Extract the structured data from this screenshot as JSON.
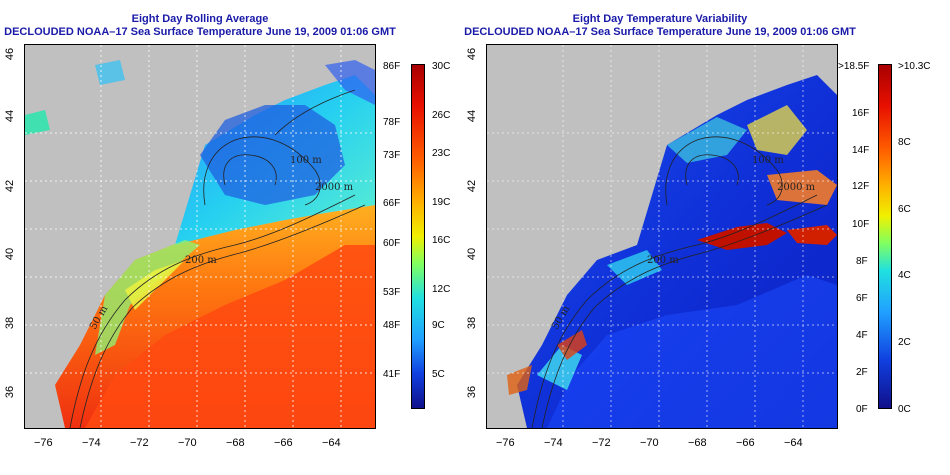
{
  "left": {
    "title_line1": "Eight Day Rolling Average",
    "title_line2": "DECLOUDED NOAA–17 Sea Surface Temperature June 19, 2009 01:06 GMT",
    "colorbar_f": [
      "86F",
      "78F",
      "73F",
      "66F",
      "60F",
      "53F",
      "48F",
      "41F"
    ],
    "colorbar_c": [
      "30C",
      "26C",
      "23C",
      "19C",
      "16C",
      "12C",
      "9C",
      "5C"
    ]
  },
  "right": {
    "title_line1": "Eight Day Temperature Variability",
    "title_line2": "DECLOUDED NOAA–17 Sea Surface Temperature June 19, 2009 01:06 GMT",
    "colorbar_f": [
      ">18.5F",
      "16F",
      "14F",
      "12F",
      "10F",
      "8F",
      "6F",
      "4F",
      "2F",
      "0F"
    ],
    "colorbar_c": [
      ">10.3C",
      "8C",
      "6C",
      "4C",
      "2C",
      "0C"
    ]
  },
  "axes": {
    "lon_labels": [
      "−76",
      "−74",
      "−72",
      "−70",
      "−68",
      "−66",
      "−64"
    ],
    "lat_labels": [
      "46",
      "44",
      "42",
      "40",
      "38",
      "36"
    ]
  },
  "contours": {
    "label_50": "50 m",
    "label_100": "100 m",
    "label_200": "200 m",
    "label_2000": "2000 m"
  },
  "colors": {
    "title": "#1a1aa8",
    "land": "#c0c0c0"
  }
}
